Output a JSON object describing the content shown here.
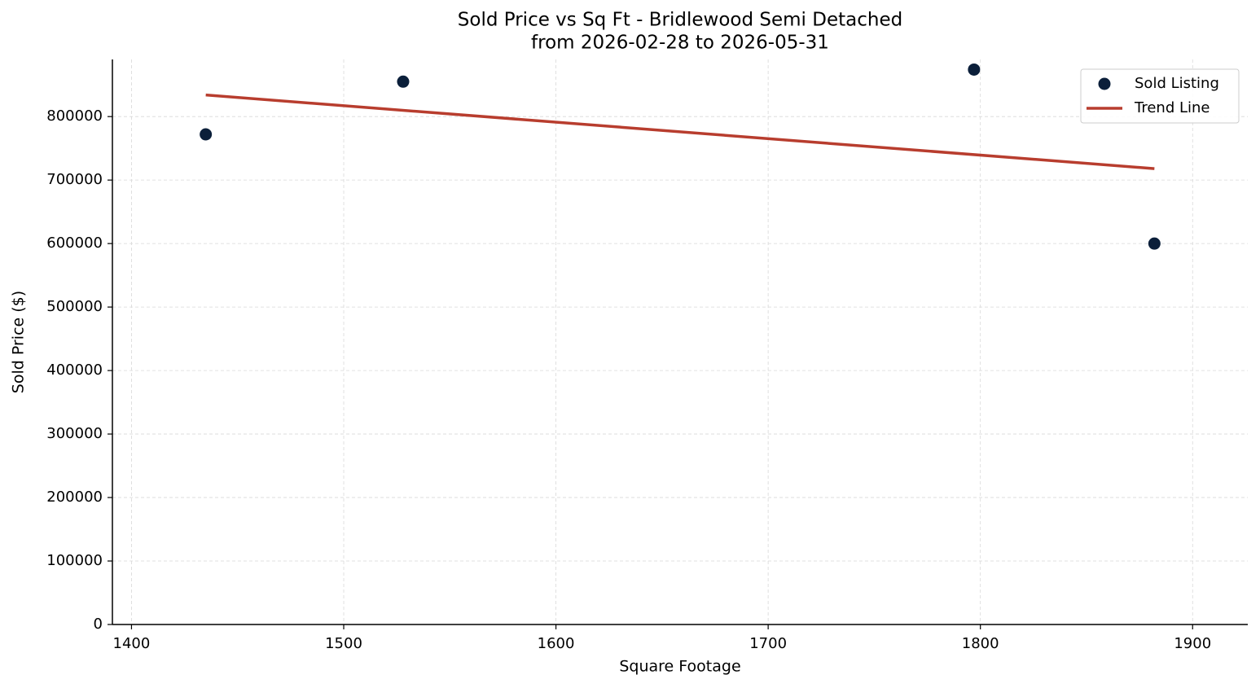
{
  "chart_data": {
    "type": "scatter",
    "title": "Sold Price vs Sq Ft - Bridlewood Semi Detached",
    "subtitle": "from 2026-02-28 to 2026-05-31",
    "x_label": "Square Footage",
    "y_label": "Sold Price ($)",
    "xlim": [
      1391,
      1926
    ],
    "ylim": [
      0,
      890000
    ],
    "xticks": [
      1400,
      1500,
      1600,
      1700,
      1800,
      1900
    ],
    "yticks": [
      0,
      100000,
      200000,
      300000,
      400000,
      500000,
      600000,
      700000,
      800000
    ],
    "grid": true,
    "legend": "upper right",
    "series": [
      {
        "name": "Sold Listing",
        "type": "scatter",
        "color": "#0b1f3a",
        "x": [
          1435,
          1528,
          1797,
          1882
        ],
        "values": [
          772000,
          855000,
          874000,
          600000
        ]
      },
      {
        "name": "Trend Line",
        "type": "line",
        "color": "#b83d2e",
        "x": [
          1435,
          1882
        ],
        "values": [
          834000,
          718000
        ]
      }
    ]
  }
}
